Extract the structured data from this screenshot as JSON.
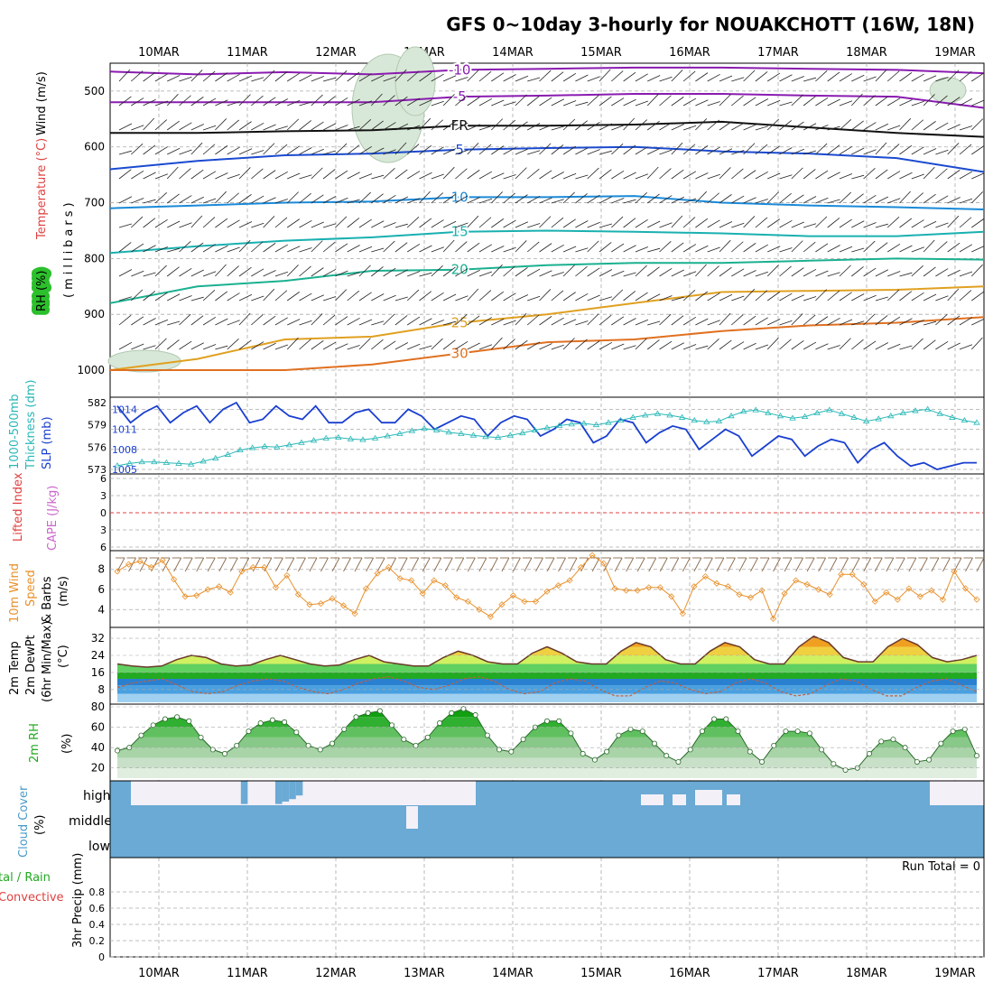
{
  "title": "GFS 0~10day 3-hourly for NOUAKCHOTT (16W, 18N)",
  "date_labels": [
    "10MAR",
    "11MAR",
    "12MAR",
    "13MAR",
    "14MAR",
    "15MAR",
    "16MAR",
    "17MAR",
    "18MAR",
    "19MAR"
  ],
  "colors": {
    "grid": "#aaaaaa",
    "slp": "#1a3fd0",
    "thickness": "#2ab7b7",
    "wind10m": "#e8902a",
    "rh": "#22aa22",
    "cloud": "#6aaad4",
    "cloud_bg": "#f4f0f8",
    "lifted": "#e04040",
    "cape": "#cc66cc",
    "temp_warm": "#f0a020",
    "temp_hot": "#e05010"
  },
  "chart_data": [
    {
      "type": "line",
      "panel": "upper-air",
      "title": "Temperature (°C) / Wind (m/s) / RH (%)",
      "ylabel_left": [
        "RH (%)",
        "Temperature (°C)",
        "Wind (m/s)"
      ],
      "ylabel_right": "(millibars)",
      "yticks": [
        500,
        600,
        700,
        800,
        900,
        1000
      ],
      "ylim": [
        450,
        1000
      ],
      "isotherms": [
        {
          "label": "-10",
          "color": "#8a1bb0",
          "values": [
            465,
            470,
            466,
            470,
            462,
            460,
            458,
            458,
            460,
            462,
            468
          ]
        },
        {
          "label": "-5",
          "color": "#8a1bb0",
          "values": [
            520,
            520,
            520,
            520,
            510,
            508,
            505,
            505,
            508,
            510,
            530
          ]
        },
        {
          "label": "FR",
          "color": "#111111",
          "values": [
            575,
            575,
            572,
            570,
            562,
            562,
            560,
            555,
            565,
            575,
            582
          ]
        },
        {
          "label": "5",
          "color": "#1a4ad0",
          "values": [
            640,
            625,
            615,
            612,
            605,
            602,
            600,
            608,
            612,
            620,
            645
          ]
        },
        {
          "label": "10",
          "color": "#1a8ad8",
          "values": [
            710,
            705,
            700,
            698,
            690,
            690,
            688,
            700,
            705,
            708,
            712
          ]
        },
        {
          "label": "15",
          "color": "#1ab0b0",
          "values": [
            790,
            778,
            768,
            762,
            752,
            750,
            752,
            755,
            760,
            760,
            752
          ]
        },
        {
          "label": "20",
          "color": "#1ab090",
          "values": [
            880,
            850,
            840,
            822,
            820,
            812,
            808,
            808,
            804,
            800,
            802
          ]
        },
        {
          "label": "25",
          "color": "#e0a020",
          "values": [
            1000,
            980,
            945,
            940,
            915,
            900,
            880,
            860,
            858,
            856,
            850
          ]
        },
        {
          "label": "30",
          "color": "#e07020",
          "values": [
            1000,
            1000,
            1000,
            990,
            970,
            950,
            945,
            930,
            920,
            915,
            905
          ]
        }
      ],
      "contour_labels": [
        "-10",
        "-5",
        "FR",
        "5",
        "10",
        "15",
        "20",
        "25",
        "30",
        "10"
      ]
    },
    {
      "type": "line",
      "panel": "slp-thickness",
      "ylabel_left": "1000-500mb Thickness (dm)",
      "ylabel_right": "SLP (mb)",
      "yticks_left": [
        573,
        576,
        579,
        582
      ],
      "yticks_right": [
        1005,
        1008,
        1011,
        1014
      ],
      "ylim_left": [
        573,
        582
      ],
      "ylim_right": [
        1005,
        1015
      ],
      "series": [
        {
          "name": "SLP",
          "axis": "right",
          "values": [
            1014.5,
            1012,
            1013.5,
            1014.5,
            1012,
            1013.5,
            1014.5,
            1012,
            1014,
            1015,
            1012,
            1012.5,
            1014.5,
            1013,
            1012.5,
            1014.5,
            1012,
            1012,
            1013.5,
            1014,
            1012,
            1012,
            1014,
            1013,
            1011,
            1012,
            1013,
            1012.5,
            1010,
            1012,
            1013,
            1012.5,
            1010,
            1011,
            1012.5,
            1012,
            1009,
            1010,
            1012.5,
            1012,
            1009,
            1010.5,
            1011.5,
            1011,
            1008,
            1009.5,
            1011,
            1010,
            1007,
            1008.5,
            1010,
            1009.5,
            1007,
            1008.5,
            1009.5,
            1009,
            1006,
            1008,
            1009,
            1007,
            1005.5,
            1006,
            1005,
            1005.5,
            1006,
            1006
          ]
        },
        {
          "name": "Thickness",
          "axis": "left",
          "values": [
            573.5,
            573.8,
            574,
            574,
            573.9,
            573.8,
            573.7,
            574.1,
            574.5,
            575,
            575.6,
            575.9,
            576.1,
            576,
            576.3,
            576.6,
            576.9,
            577.2,
            577.3,
            577.1,
            577,
            577.2,
            577.5,
            577.8,
            578.2,
            578.5,
            578.3,
            578,
            577.8,
            577.6,
            577.4,
            577.3,
            577.6,
            577.9,
            578.3,
            578.6,
            578.9,
            579.1,
            579.2,
            579,
            579.3,
            579.6,
            580,
            580.3,
            580.5,
            580.3,
            580,
            579.6,
            579.4,
            579.5,
            580.2,
            580.8,
            581,
            580.6,
            580.2,
            579.9,
            580.1,
            580.6,
            581,
            580.5,
            580,
            579.5,
            579.8,
            580.2,
            580.6,
            580.9,
            581.1,
            580.5,
            580,
            579.6,
            579.3
          ]
        }
      ]
    },
    {
      "type": "line",
      "panel": "lifted-cape",
      "ylabel_left": "Lifted Index",
      "ylabel_right": "CAPE (J/kg)",
      "yticks": [
        -6,
        -3,
        0,
        3,
        6
      ],
      "ylim": [
        -6,
        6
      ],
      "zero_line": 0
    },
    {
      "type": "line",
      "panel": "wind10m",
      "ylabel": [
        "10m Wind",
        "Speed",
        "& Barbs",
        "(m/s)"
      ],
      "yticks": [
        4,
        6,
        8
      ],
      "ylim": [
        2.5,
        9.5
      ],
      "series": [
        {
          "name": "10m Wind Speed",
          "values": [
            7.8,
            8.5,
            8.8,
            8.2,
            8.9,
            7,
            5.3,
            5.4,
            6,
            6.3,
            5.7,
            7.8,
            8.2,
            8.2,
            6.2,
            7.4,
            5.5,
            4.5,
            4.6,
            5.1,
            4.4,
            3.6,
            6.1,
            7.6,
            8.2,
            7.1,
            6.9,
            5.6,
            6.9,
            6.4,
            5.2,
            4.8,
            4,
            3.3,
            4.5,
            5.4,
            4.8,
            4.8,
            5.8,
            6.4,
            6.9,
            8.2,
            9.4,
            8.6,
            6.1,
            5.9,
            5.9,
            6.2,
            6.2,
            5.3,
            3.6,
            6.3,
            7.3,
            6.6,
            6.3,
            5.5,
            5.2,
            5.9,
            3.1,
            5.6,
            6.9,
            6.5,
            6,
            5.5,
            7.5,
            7.5,
            6.5,
            4.8,
            5.7,
            5,
            6.1,
            5.3,
            5.9,
            5,
            7.8,
            6.1,
            5
          ]
        }
      ]
    },
    {
      "type": "area",
      "panel": "temperature",
      "ylabel": [
        "2m Temp",
        "2m DewPt",
        "(6hr Min/Max)",
        "(°C)"
      ],
      "yticks": [
        8,
        16,
        24,
        32
      ],
      "ylim": [
        2,
        35
      ],
      "series": [
        {
          "name": "2m Temp",
          "values": [
            20,
            19,
            18.5,
            19,
            22,
            24,
            23,
            20,
            19,
            19.5,
            22,
            24,
            22,
            20,
            19,
            19.5,
            22,
            24,
            21,
            20,
            19,
            19,
            23,
            26,
            24,
            21,
            20,
            20,
            25,
            28,
            25,
            21,
            20,
            20,
            26,
            30,
            28,
            22,
            20,
            20,
            26,
            30,
            28,
            22,
            20,
            20,
            28,
            33,
            30,
            23,
            21,
            21,
            28,
            32,
            29,
            23,
            21,
            22,
            24
          ]
        },
        {
          "name": "2m DewPt",
          "values": [
            9,
            11,
            12,
            13,
            10,
            7,
            6,
            7,
            10,
            12,
            13,
            12,
            9,
            7,
            6,
            8,
            11,
            13,
            14,
            12,
            9,
            8,
            10,
            13,
            14,
            12,
            8,
            6,
            7,
            11,
            13,
            12,
            8,
            5,
            5,
            9,
            12,
            11,
            8,
            6,
            7,
            11,
            13,
            11,
            7,
            5,
            6,
            10,
            13,
            12,
            8,
            5,
            5,
            9,
            12,
            13,
            10,
            7
          ]
        }
      ]
    },
    {
      "type": "area",
      "panel": "rh2m",
      "ylabel": [
        "2m RH",
        "(%)"
      ],
      "yticks": [
        20,
        40,
        60,
        80
      ],
      "ylim": [
        10,
        80
      ],
      "series": [
        {
          "name": "2m RH",
          "values": [
            37,
            40,
            52,
            62,
            68,
            70,
            66,
            50,
            38,
            34,
            42,
            56,
            64,
            67,
            65,
            55,
            42,
            38,
            44,
            58,
            70,
            74,
            76,
            62,
            48,
            42,
            50,
            64,
            74,
            78,
            72,
            52,
            38,
            36,
            48,
            60,
            66,
            66,
            54,
            34,
            28,
            36,
            52,
            58,
            56,
            44,
            32,
            26,
            38,
            56,
            68,
            68,
            56,
            36,
            26,
            42,
            56,
            56,
            54,
            38,
            24,
            18,
            20,
            34,
            46,
            48,
            40,
            26,
            28,
            44,
            56,
            58,
            32
          ]
        }
      ]
    },
    {
      "type": "bar",
      "panel": "cloud-cover",
      "ylabel": [
        "Cloud Cover",
        "(%)"
      ],
      "levels": [
        "high",
        "middle",
        "low"
      ],
      "series": [
        {
          "name": "high",
          "values": [
            100,
            65,
            95,
            100,
            100,
            100,
            100,
            100,
            100,
            100,
            100,
            100,
            100,
            100,
            100,
            100,
            100,
            100,
            100,
            95,
            100,
            100,
            100,
            100,
            95,
            85,
            75,
            60,
            100,
            100,
            100,
            100,
            100,
            100,
            100,
            100,
            100,
            100,
            100,
            100,
            100,
            100,
            100,
            0,
            0,
            0,
            0,
            0,
            0,
            0,
            0,
            0,
            0,
            0,
            0,
            0,
            0,
            0,
            0,
            0,
            0,
            0,
            0,
            0,
            0,
            0,
            0,
            0,
            0,
            0,
            0,
            0,
            0,
            0,
            40,
            20,
            100,
            0,
            0,
            0,
            0,
            0,
            0,
            0,
            0,
            0,
            0,
            0,
            0,
            0,
            0,
            0,
            0,
            0,
            0,
            0,
            0,
            0,
            0,
            0,
            0,
            0,
            0,
            0,
            0,
            0,
            0,
            0,
            0,
            0,
            0,
            0,
            0,
            0,
            0,
            0,
            0,
            0,
            0,
            100,
            100,
            100,
            100,
            100,
            100,
            100,
            100
          ]
        },
        {
          "name": "middle",
          "values": [
            0,
            0,
            0,
            0,
            0,
            0,
            0,
            0,
            0,
            0,
            0,
            0,
            0,
            0,
            0,
            0,
            0,
            0,
            0,
            0,
            0,
            0,
            0,
            0,
            0,
            0,
            0,
            0,
            0,
            0,
            0,
            0,
            0,
            0,
            0,
            0,
            0,
            0,
            0,
            0,
            0,
            0,
            0,
            0,
            0,
            0,
            0,
            0,
            0,
            0,
            0,
            0,
            0,
            0,
            0,
            0,
            0,
            0,
            0,
            0,
            0,
            0,
            0,
            0,
            0,
            0,
            0,
            0,
            0,
            0,
            0,
            0,
            0,
            0,
            0,
            0,
            0,
            0,
            0,
            0,
            0,
            0,
            0,
            0,
            0,
            0,
            0,
            0,
            0,
            0,
            0,
            0,
            0,
            0,
            0,
            0,
            0,
            0,
            0,
            0,
            0,
            0,
            0,
            0,
            0,
            0,
            0,
            0,
            0,
            0,
            0,
            0,
            0,
            0,
            0,
            0,
            0,
            0,
            0,
            0,
            0,
            0,
            0,
            0,
            0,
            0,
            0
          ]
        }
      ]
    },
    {
      "type": "bar",
      "panel": "precip",
      "ylabel_left": [
        "Total / Rain",
        "Convective"
      ],
      "ylabel_right": "3hr Precip (mm)",
      "yticks": [
        0,
        0.2,
        0.4,
        0.6,
        0.8
      ],
      "ylim": [
        0,
        1
      ],
      "run_total_label": "Run Total = 0",
      "series": [
        {
          "name": "Total",
          "values": []
        }
      ]
    }
  ],
  "side_labels": {
    "temperature": "Temperature (°C)",
    "wind": "Wind (m/s)",
    "millibars": "(millibars)",
    "rh": "RH (%)",
    "thickness": "1000-500mb",
    "thickness2": "Thickness (dm)",
    "slp": "SLP (mb)",
    "lifted": "Lifted Index",
    "cape": "CAPE (J/kg)",
    "wind10m_1": "10m Wind",
    "wind10m_2": "Speed",
    "wind10m_3": "& Barbs",
    "wind10m_4": "(m/s)",
    "t2m_1": "2m Temp",
    "t2m_2": "2m DewPt",
    "t2m_3": "(6hr Min/Max)",
    "t2m_4": "(°C)",
    "rh2m_1": "2m RH",
    "rh2m_2": "(%)",
    "cloud_1": "Cloud Cover",
    "cloud_2": "(%)",
    "precip_1": "tal / Rain",
    "precip_2": "Convective",
    "precip_3": "3hr Precip (mm)",
    "high": "high",
    "middle": "middle",
    "low": "low",
    "run_total": "Run Total = 0"
  }
}
